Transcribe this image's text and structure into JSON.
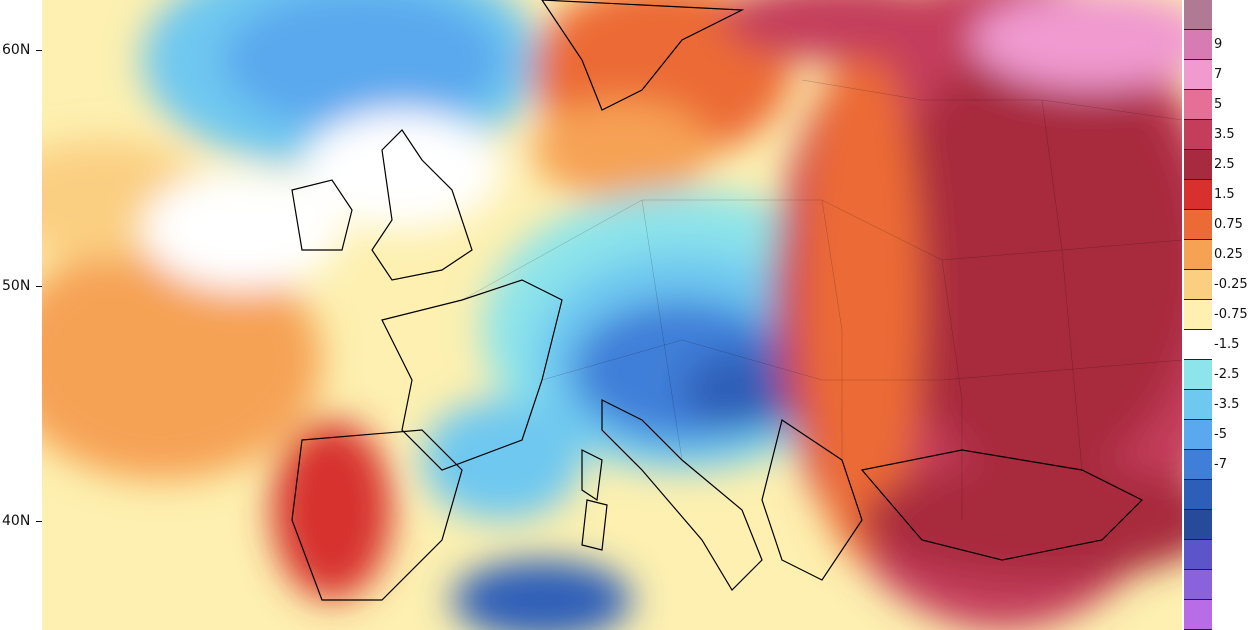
{
  "lat_labels": [
    "60N",
    "50N",
    "40N"
  ],
  "colorbar": {
    "labels": [
      "9",
      "7",
      "5",
      "3.5",
      "2.5",
      "1.5",
      "0.75",
      "0.25",
      "-0.25",
      "-0.75",
      "-1.5",
      "-2.5",
      "-3.5",
      "-5",
      "-7"
    ],
    "colors": [
      "#b07a94",
      "#d77bb3",
      "#f09ad0",
      "#e56f96",
      "#c43e5c",
      "#a82a3e",
      "#d7302e",
      "#ec6a36",
      "#f6a255",
      "#fbcf82",
      "#fdf0b0",
      "#ffffff",
      "#8de4ea",
      "#6ec8f0",
      "#5aa8ee",
      "#3f7fd9",
      "#2e5fb8",
      "#284a9a",
      "#5b55c9",
      "#8a62db",
      "#b86de6"
    ]
  },
  "colors": {
    "hot_deep": "#8e2a44",
    "hot": "#c8373d",
    "warm": "#e8602c",
    "warm_light": "#f2a257",
    "mild": "#f8cd84",
    "neutral": "#ffffff",
    "cool": "#8fe0ec",
    "cold": "#5aa6ee",
    "colder": "#3c7cd6",
    "coldest": "#2f5fb8",
    "pink": "#f08fc4"
  }
}
